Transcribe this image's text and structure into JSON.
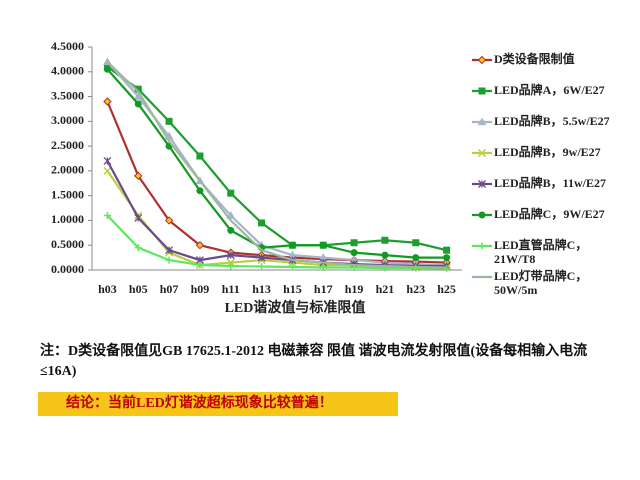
{
  "chart_data": {
    "type": "line",
    "x_label": "LED谐波值与标准限值",
    "categories": [
      "h03",
      "h05",
      "h07",
      "h09",
      "h11",
      "h13",
      "h15",
      "h17",
      "h19",
      "h21",
      "h23",
      "h25"
    ],
    "ylim": [
      0,
      4.5
    ],
    "yticks": [
      {
        "value": 0,
        "label": "0.0000"
      },
      {
        "value": 0.5,
        "label": "0.5000"
      },
      {
        "value": 1,
        "label": "1.0000"
      },
      {
        "value": 1.5,
        "label": "1.5000"
      },
      {
        "value": 2,
        "label": "2.0000"
      },
      {
        "value": 2.5,
        "label": "2.5000"
      },
      {
        "value": 3,
        "label": "3.0000"
      },
      {
        "value": 3.5,
        "label": "3.5000"
      },
      {
        "value": 4,
        "label": "4.0000"
      },
      {
        "value": 4.5,
        "label": "4.5000"
      }
    ],
    "series": [
      {
        "name": "D类设备限制值",
        "color": "#b03030",
        "marker": "diamond",
        "values": [
          3.4,
          1.9,
          1.0,
          0.5,
          0.35,
          0.3,
          0.25,
          0.22,
          0.2,
          0.18,
          0.17,
          0.15
        ]
      },
      {
        "name": "LED品牌A，6W/E27",
        "color": "#1e9e2e",
        "marker": "square",
        "values": [
          4.1,
          3.65,
          3.0,
          2.3,
          1.55,
          0.95,
          0.5,
          0.5,
          0.55,
          0.6,
          0.55,
          0.4
        ]
      },
      {
        "name": "LED品牌B，5.5w/E27",
        "color": "#a8b4cc",
        "marker": "triangle",
        "values": [
          4.2,
          3.5,
          2.7,
          1.8,
          1.1,
          0.5,
          0.3,
          0.25,
          0.2,
          0.15,
          0.12,
          0.1
        ]
      },
      {
        "name": "LED品牌B，9w/E27",
        "color": "#b8d040",
        "marker": "x",
        "values": [
          2.0,
          1.1,
          0.35,
          0.1,
          0.15,
          0.2,
          0.15,
          0.1,
          0.1,
          0.08,
          0.05,
          0.05
        ]
      },
      {
        "name": "LED品牌B，11w/E27",
        "color": "#6a4a8c",
        "marker": "star",
        "values": [
          2.2,
          1.05,
          0.4,
          0.2,
          0.3,
          0.25,
          0.2,
          0.15,
          0.12,
          0.1,
          0.08,
          0.08
        ]
      },
      {
        "name": "LED品牌C，9W/E27",
        "color": "#129a22",
        "marker": "circle",
        "values": [
          4.05,
          3.35,
          2.5,
          1.6,
          0.8,
          0.45,
          0.5,
          0.5,
          0.35,
          0.3,
          0.25,
          0.25
        ]
      },
      {
        "name": "LED直管品牌C，21W/T8",
        "color": "#5ee85e",
        "marker": "plus",
        "values": [
          1.1,
          0.45,
          0.2,
          0.1,
          0.08,
          0.07,
          0.06,
          0.05,
          0.05,
          0.04,
          0.04,
          0.03
        ]
      },
      {
        "name": "LED灯带品牌C，50W/5m",
        "color": "#9cb89c",
        "marker": "none",
        "values": [
          4.2,
          3.6,
          2.6,
          1.8,
          1.0,
          0.4,
          0.2,
          0.15,
          0.1,
          0.08,
          0.06,
          0.05
        ]
      }
    ]
  },
  "note": "注：D类设备限值见GB 17625.1-2012 电磁兼容 限值 谐波电流发射限值(设备每相输入电流≤16A)",
  "conclusion": "结论：当前LED灯谐波超标现象比较普遍！"
}
